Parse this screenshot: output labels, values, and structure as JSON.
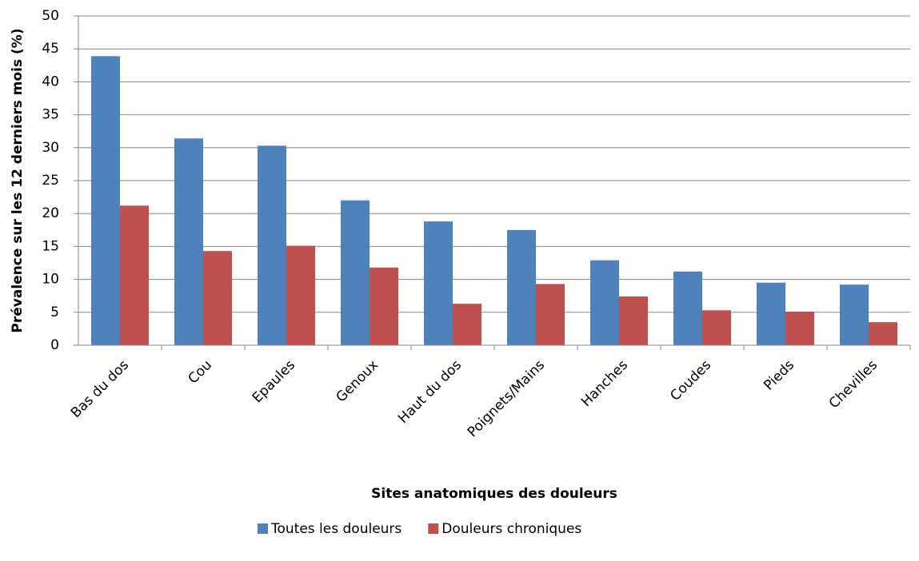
{
  "chart_data": {
    "type": "bar",
    "x_label": "Sites anatomiques des douleurs",
    "y_label": "Prévalence sur les 12 derniers mois (%)",
    "categories": [
      "Bas du dos",
      "Cou",
      "Epaules",
      "Genoux",
      "Haut du dos",
      "Poignets/Mains",
      "Hanches",
      "Coudes",
      "Pieds",
      "Chevilles"
    ],
    "series": [
      {
        "name": "Toutes les douleurs",
        "color": "#4f81bd",
        "values": [
          43.9,
          31.4,
          30.3,
          22.0,
          18.8,
          17.5,
          12.9,
          11.2,
          9.5,
          9.2
        ]
      },
      {
        "name": "Douleurs chroniques",
        "color": "#c0504d",
        "values": [
          21.2,
          14.3,
          15.1,
          11.8,
          6.3,
          9.3,
          7.4,
          5.3,
          5.1,
          3.5
        ]
      }
    ],
    "ylim": [
      0,
      50
    ],
    "yticks": [
      0,
      5,
      10,
      15,
      20,
      25,
      30,
      35,
      40,
      45,
      50
    ],
    "grid": true,
    "legend": "bottom"
  }
}
